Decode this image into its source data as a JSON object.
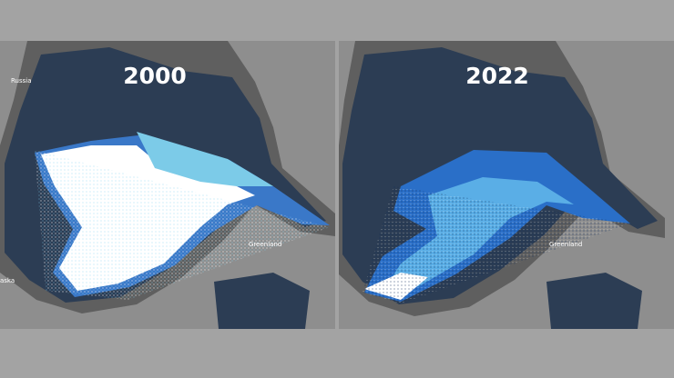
{
  "panels": [
    {
      "year": "2000",
      "labels": [
        "Russia",
        "Greenland",
        "aska"
      ]
    },
    {
      "year": "2022",
      "labels": [
        "Greenland"
      ]
    }
  ]
}
